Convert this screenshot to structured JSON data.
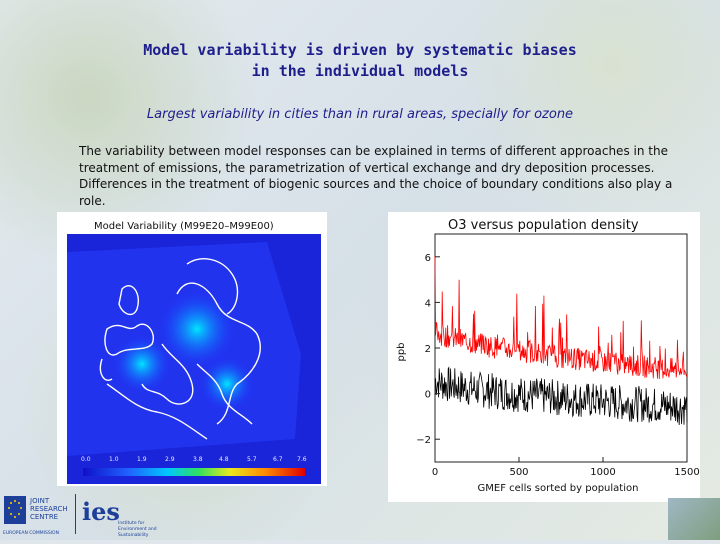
{
  "slide": {
    "title_line1": "Model variability is driven by systematic biases",
    "title_line2": "in the individual models",
    "subtitle": "Largest variability in cities than in rural areas, specially for ozone",
    "body": "The variability between model responses can be explained in terms of different approaches in the treatment of emissions, the parametrization of vertical exchange and dry deposition processes. Differences in the treatment of biogenic sources and the choice of boundary conditions also play a role."
  },
  "map": {
    "caption": "Model Variability (M99E20–M99E00)",
    "colorbar_ticks": [
      "0.0",
      "1.0",
      "1.9",
      "2.9",
      "3.8",
      "4.8",
      "5.7",
      "6.7",
      "7.6"
    ]
  },
  "logos": {
    "jrc_line1": "JOINT",
    "jrc_line2": "RESEARCH",
    "jrc_line3": "CENTRE",
    "jrc_sub": "EUROPEAN COMMISSION",
    "ies_mark": "ies",
    "ies_sub1": "Institute for",
    "ies_sub2": "Environment and",
    "ies_sub3": "Sustainability"
  },
  "colors": {
    "title": "#1e1e8c",
    "red_series": "#ff0000",
    "black_series": "#000000"
  },
  "chart_data": {
    "type": "line",
    "title": "O3 versus population density",
    "xlabel": "GMEF cells sorted by population",
    "ylabel": "ppb",
    "xlim": [
      0,
      1500
    ],
    "ylim": [
      -3,
      7
    ],
    "xticks": [
      "0",
      "500",
      "1000",
      "1500"
    ],
    "yticks": [
      "−2",
      "0",
      "2",
      "4",
      "6"
    ],
    "series": [
      {
        "color": "#ff0000",
        "level_start": 2.8,
        "level_end": 1.0,
        "noise_amplitude": 0.5
      },
      {
        "color": "#000000",
        "level_start": 0.6,
        "level_end": -0.6,
        "noise_amplitude": 0.8
      }
    ]
  }
}
